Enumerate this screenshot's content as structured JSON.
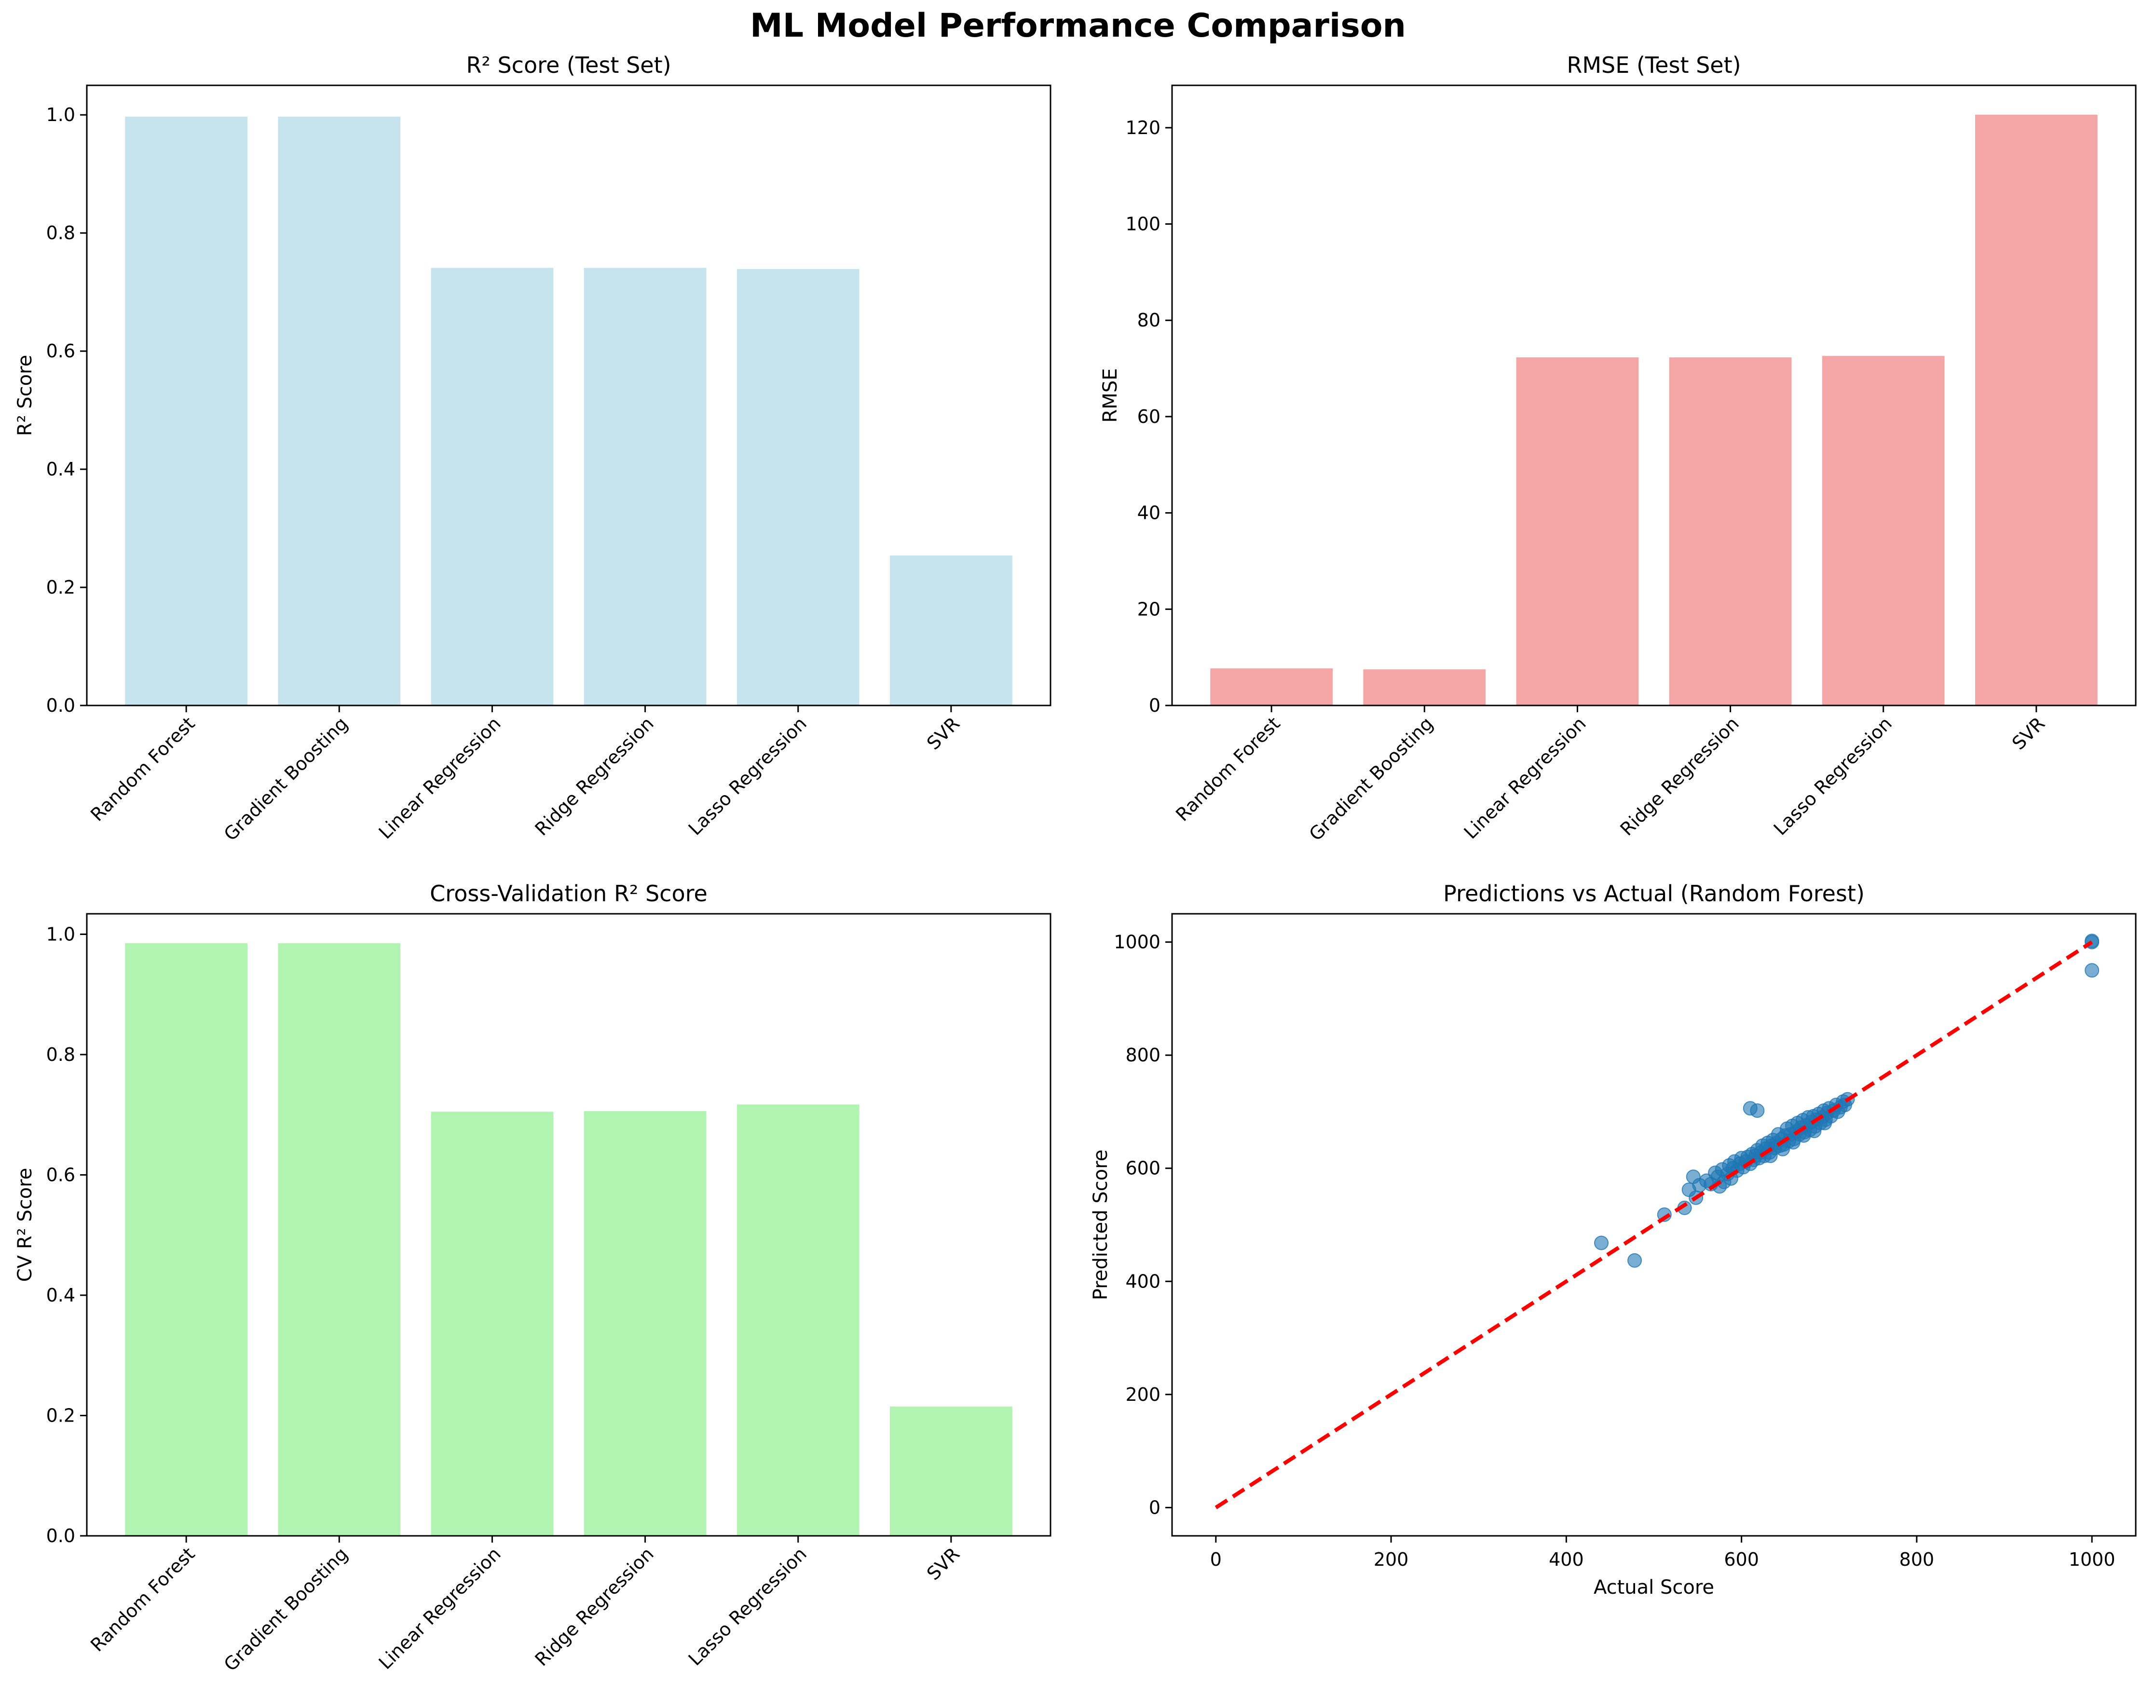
{
  "figure": {
    "title": "ML Model Performance Comparison"
  },
  "chart_data": [
    {
      "id": "r2",
      "type": "bar",
      "title": "R² Score (Test Set)",
      "xlabel": "",
      "ylabel": "R² Score",
      "categories": [
        "Random Forest",
        "Gradient Boosting",
        "Linear Regression",
        "Ridge Regression",
        "Lasso Regression",
        "SVR"
      ],
      "values": [
        0.997,
        0.997,
        0.741,
        0.741,
        0.739,
        0.254
      ],
      "ylim": [
        0,
        1.05
      ],
      "yticks": [
        0.0,
        0.2,
        0.4,
        0.6,
        0.8,
        1.0
      ],
      "ytick_labels": [
        "0.0",
        "0.2",
        "0.4",
        "0.6",
        "0.8",
        "1.0"
      ],
      "color": "#add8e6",
      "grid": false
    },
    {
      "id": "rmse",
      "type": "bar",
      "title": "RMSE (Test Set)",
      "xlabel": "",
      "ylabel": "RMSE",
      "categories": [
        "Random Forest",
        "Gradient Boosting",
        "Linear Regression",
        "Ridge Regression",
        "Lasso Regression",
        "SVR"
      ],
      "values": [
        7.7,
        7.5,
        72.3,
        72.3,
        72.6,
        122.7
      ],
      "ylim": [
        0,
        128.8
      ],
      "yticks": [
        0,
        20,
        40,
        60,
        80,
        100,
        120
      ],
      "ytick_labels": [
        "0",
        "20",
        "40",
        "60",
        "80",
        "100",
        "120"
      ],
      "color": "#f08080",
      "grid": false
    },
    {
      "id": "cv",
      "type": "bar",
      "title": "Cross-Validation R² Score",
      "xlabel": "",
      "ylabel": "CV R² Score",
      "categories": [
        "Random Forest",
        "Gradient Boosting",
        "Linear Regression",
        "Ridge Regression",
        "Lasso Regression",
        "SVR"
      ],
      "values": [
        0.985,
        0.985,
        0.705,
        0.706,
        0.717,
        0.215
      ],
      "ylim": [
        0,
        1.034
      ],
      "yticks": [
        0.0,
        0.2,
        0.4,
        0.6,
        0.8,
        1.0
      ],
      "ytick_labels": [
        "0.0",
        "0.2",
        "0.4",
        "0.6",
        "0.8",
        "1.0"
      ],
      "color": "#90ee90",
      "grid": false
    },
    {
      "id": "scatter",
      "type": "scatter",
      "title": "Predictions vs Actual (Random Forest)",
      "xlabel": "Actual Score",
      "ylabel": "Predicted Score",
      "xlim": [
        -50,
        1050
      ],
      "ylim": [
        -50,
        1050
      ],
      "xticks": [
        0,
        200,
        400,
        600,
        800,
        1000
      ],
      "xtick_labels": [
        "0",
        "200",
        "400",
        "600",
        "800",
        "1000"
      ],
      "yticks": [
        0,
        200,
        400,
        600,
        800,
        1000
      ],
      "ytick_labels": [
        "0",
        "200",
        "400",
        "600",
        "800",
        "1000"
      ],
      "point_color": "#1f77b4",
      "reference_line": {
        "from": [
          0,
          0
        ],
        "to": [
          1000,
          1000
        ],
        "color": "#ff0000",
        "style": "dashed"
      },
      "points": [
        [
          440,
          468
        ],
        [
          478,
          437
        ],
        [
          512,
          518
        ],
        [
          535,
          530
        ],
        [
          540,
          562
        ],
        [
          545,
          585
        ],
        [
          548,
          548
        ],
        [
          552,
          570
        ],
        [
          560,
          578
        ],
        [
          565,
          572
        ],
        [
          570,
          592
        ],
        [
          573,
          585
        ],
        [
          578,
          598
        ],
        [
          580,
          576
        ],
        [
          584,
          590
        ],
        [
          586,
          605
        ],
        [
          590,
          600
        ],
        [
          592,
          612
        ],
        [
          595,
          596
        ],
        [
          598,
          608
        ],
        [
          600,
          618
        ],
        [
          602,
          602
        ],
        [
          605,
          612
        ],
        [
          607,
          620
        ],
        [
          610,
          608
        ],
        [
          612,
          625
        ],
        [
          614,
          615
        ],
        [
          616,
          622
        ],
        [
          618,
          632
        ],
        [
          620,
          618
        ],
        [
          622,
          628
        ],
        [
          624,
          640
        ],
        [
          626,
          622
        ],
        [
          628,
          635
        ],
        [
          630,
          645
        ],
        [
          632,
          628
        ],
        [
          634,
          640
        ],
        [
          636,
          650
        ],
        [
          638,
          636
        ],
        [
          640,
          645
        ],
        [
          642,
          660
        ],
        [
          644,
          640
        ],
        [
          646,
          652
        ],
        [
          648,
          642
        ],
        [
          650,
          658
        ],
        [
          652,
          670
        ],
        [
          654,
          648
        ],
        [
          656,
          660
        ],
        [
          658,
          675
        ],
        [
          660,
          652
        ],
        [
          662,
          665
        ],
        [
          664,
          680
        ],
        [
          666,
          660
        ],
        [
          668,
          672
        ],
        [
          670,
          685
        ],
        [
          672,
          664
        ],
        [
          674,
          676
        ],
        [
          676,
          690
        ],
        [
          678,
          668
        ],
        [
          680,
          682
        ],
        [
          682,
          692
        ],
        [
          684,
          674
        ],
        [
          686,
          686
        ],
        [
          688,
          696
        ],
        [
          690,
          680
        ],
        [
          692,
          690
        ],
        [
          694,
          702
        ],
        [
          696,
          686
        ],
        [
          698,
          698
        ],
        [
          700,
          706
        ],
        [
          702,
          692
        ],
        [
          705,
          702
        ],
        [
          708,
          712
        ],
        [
          710,
          700
        ],
        [
          713,
          708
        ],
        [
          716,
          718
        ],
        [
          718,
          712
        ],
        [
          721,
          722
        ],
        [
          610,
          706
        ],
        [
          618,
          702
        ],
        [
          575,
          568
        ],
        [
          588,
          582
        ],
        [
          633,
          622
        ],
        [
          647,
          634
        ],
        [
          659,
          646
        ],
        [
          671,
          658
        ],
        [
          683,
          666
        ],
        [
          695,
          680
        ],
        [
          1000,
          1000
        ],
        [
          1000,
          1002
        ],
        [
          1000,
          950
        ]
      ]
    }
  ]
}
